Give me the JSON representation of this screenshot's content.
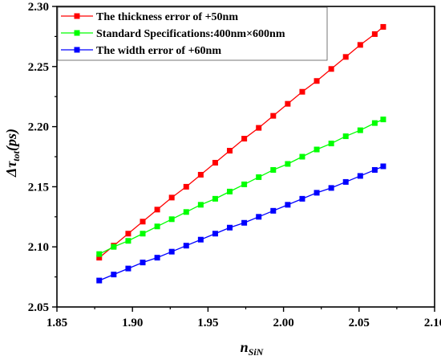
{
  "chart_data": {
    "type": "line",
    "xlabel": {
      "main": "n",
      "sub": "SiN"
    },
    "ylabel": {
      "main": "Δτ",
      "sub": "tot",
      "suffix": "(ps)"
    },
    "xlim": [
      1.85,
      2.1
    ],
    "ylim": [
      2.05,
      2.3
    ],
    "xticks": [
      "1.85",
      "1.90",
      "1.95",
      "2.00",
      "2.05",
      "2.10"
    ],
    "yticks": [
      "2.05",
      "2.10",
      "2.15",
      "2.20",
      "2.25",
      "2.30"
    ],
    "legend_position": "top-left",
    "grid": false,
    "x": [
      1.878,
      1.8876,
      1.8972,
      1.9068,
      1.9164,
      1.926,
      1.9356,
      1.9452,
      1.9548,
      1.9644,
      1.974,
      1.9836,
      1.9932,
      2.0028,
      2.0124,
      2.022,
      2.0316,
      2.0412,
      2.0508,
      2.0604,
      2.066
    ],
    "series": [
      {
        "name": "The thickness error of +50nm",
        "color": "#ff0000",
        "marker": "square",
        "values": [
          2.091,
          2.101,
          2.111,
          2.121,
          2.131,
          2.141,
          2.15,
          2.16,
          2.17,
          2.18,
          2.19,
          2.199,
          2.209,
          2.219,
          2.229,
          2.238,
          2.248,
          2.258,
          2.268,
          2.277,
          2.283
        ]
      },
      {
        "name": "Standard Specifications:400nm×600nm",
        "color": "#00ff00",
        "marker": "square",
        "values": [
          2.094,
          2.1,
          2.105,
          2.111,
          2.117,
          2.123,
          2.129,
          2.135,
          2.14,
          2.146,
          2.152,
          2.158,
          2.164,
          2.169,
          2.175,
          2.181,
          2.186,
          2.192,
          2.197,
          2.203,
          2.206
        ]
      },
      {
        "name": "The width error of +60nm",
        "color": "#0000ff",
        "marker": "square",
        "values": [
          2.072,
          2.077,
          2.082,
          2.087,
          2.091,
          2.096,
          2.101,
          2.106,
          2.111,
          2.116,
          2.12,
          2.125,
          2.13,
          2.135,
          2.14,
          2.145,
          2.149,
          2.154,
          2.159,
          2.164,
          2.167
        ]
      }
    ]
  }
}
